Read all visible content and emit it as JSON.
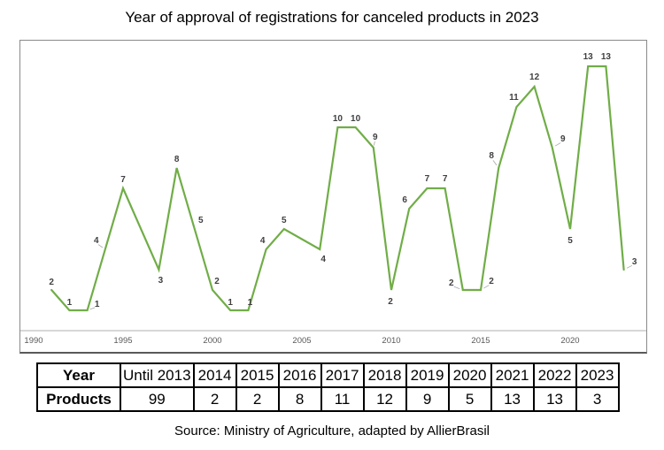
{
  "title": "Year of approval of registrations for canceled products in 2023",
  "source": "Source: Ministry of Agriculture, adapted by AllierBrasil",
  "colors": {
    "line": "#70AD47",
    "data_label": "#404040",
    "axis_line": "#BFBFBF",
    "tick_label": "#595959",
    "chart_border": "#8A8A8A",
    "table_border": "#000000"
  },
  "chart_data": {
    "type": "line",
    "x": [
      1991,
      1992,
      1993,
      1994,
      1995,
      1997,
      1998,
      1999,
      2000,
      2001,
      2002,
      2003,
      2004,
      2006,
      2007,
      2008,
      2009,
      2010,
      2011,
      2012,
      2013,
      2014,
      2015,
      2016,
      2017,
      2018,
      2019,
      2020,
      2021,
      2022,
      2023
    ],
    "values": [
      2,
      1,
      1,
      4,
      7,
      3,
      8,
      5,
      2,
      1,
      1,
      4,
      5,
      4,
      10,
      10,
      9,
      2,
      6,
      7,
      7,
      2,
      2,
      8,
      11,
      12,
      9,
      5,
      13,
      13,
      3
    ],
    "title": "",
    "xlabel": "",
    "ylabel": "",
    "x_tick_labels": [
      1990,
      1995,
      2000,
      2005,
      2010,
      2015,
      2020
    ],
    "x_range": [
      1990,
      2024
    ],
    "y_range": [
      0,
      14
    ],
    "grid": false,
    "legend": "none",
    "data_labels_visible": true
  },
  "table": {
    "headers": [
      "Year",
      "Until 2013",
      "2014",
      "2015",
      "2016",
      "2017",
      "2018",
      "2019",
      "2020",
      "2021",
      "2022",
      "2023"
    ],
    "rows": [
      [
        "Products",
        "99",
        "2",
        "2",
        "8",
        "11",
        "12",
        "9",
        "5",
        "13",
        "13",
        "3"
      ]
    ]
  }
}
